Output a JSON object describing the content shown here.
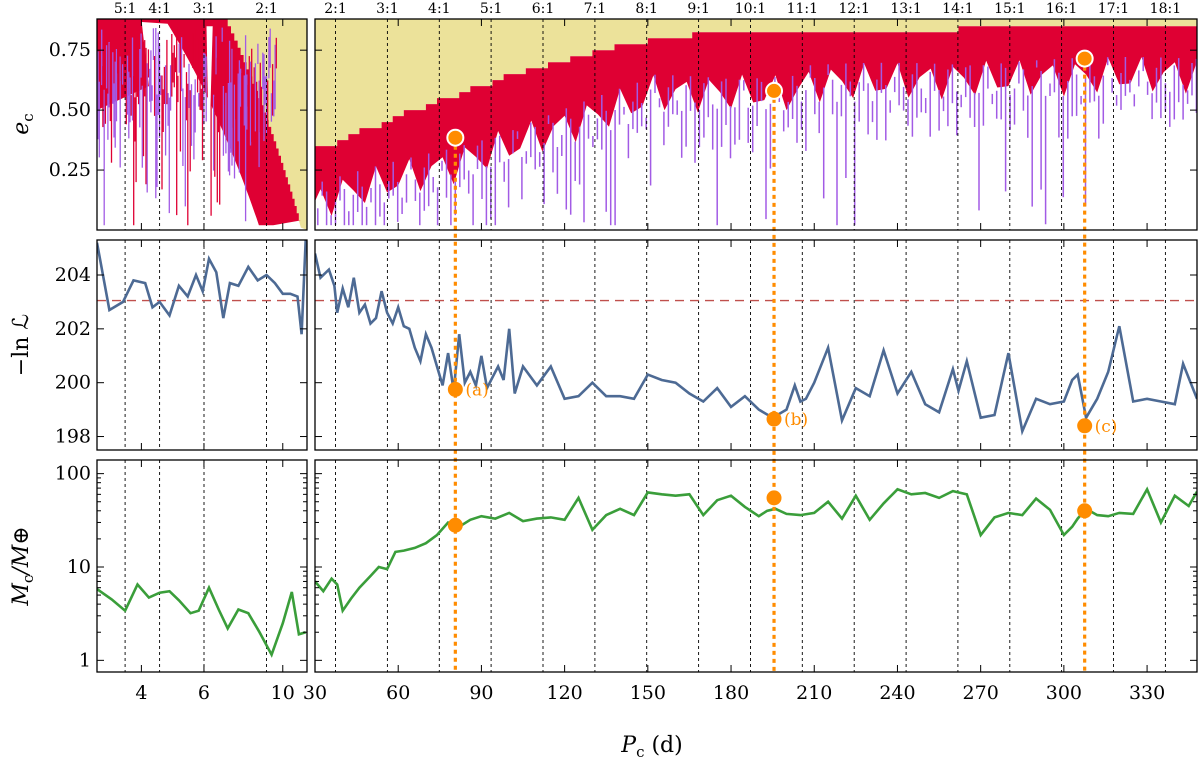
{
  "chart_data": {
    "type": "line",
    "panels": {
      "ecc": {
        "ylabel": "e",
        "ylabel_sub": "c",
        "ylim": [
          0.0,
          0.88
        ],
        "yticks": [
          0.25,
          0.5,
          0.75
        ],
        "ytick_labels": [
          "0.25",
          "0.50",
          "0.75"
        ]
      },
      "lnL": {
        "ylabel": "−ln ℒ",
        "ylim": [
          197.5,
          205.3
        ],
        "yticks": [
          198,
          200,
          202,
          204
        ],
        "ytick_labels": [
          "198",
          "200",
          "202",
          "204"
        ],
        "threshold": 203.05
      },
      "mass": {
        "ylabel": "M",
        "ylabel_sub": "c",
        "ylabel_suffix": "/M⊕",
        "yscale": "log",
        "ylim": [
          0.75,
          140
        ],
        "yticks": [
          1,
          10,
          100
        ],
        "ytick_labels": [
          "1",
          "10",
          "100"
        ]
      }
    },
    "xlabel": "P",
    "xlabel_sub": "c",
    "xlabel_suffix": " (d)",
    "left_xlim": [
      3.0,
      11.7
    ],
    "left_xticks": [
      4,
      6,
      10
    ],
    "left_xtick_labels": [
      "4",
      "6",
      "10"
    ],
    "right_xlim": [
      30,
      348
    ],
    "right_xticks": [
      30,
      60,
      90,
      120,
      150,
      180,
      210,
      240,
      270,
      300,
      330
    ],
    "right_xtick_labels": [
      "30",
      "60",
      "90",
      "120",
      "150",
      "180",
      "210",
      "240",
      "270",
      "300",
      "330"
    ],
    "left_resonances": [
      {
        "label": "5:1",
        "x": 3.6
      },
      {
        "label": "4:1",
        "x": 4.5
      },
      {
        "label": "3:1",
        "x": 6.0
      },
      {
        "label": "2:1",
        "x": 9.0
      }
    ],
    "right_resonances": [
      {
        "label": "2:1",
        "x": 37.4
      },
      {
        "label": "3:1",
        "x": 56.1
      },
      {
        "label": "4:1",
        "x": 74.8
      },
      {
        "label": "5:1",
        "x": 93.5
      },
      {
        "label": "6:1",
        "x": 112.2
      },
      {
        "label": "7:1",
        "x": 130.9
      },
      {
        "label": "8:1",
        "x": 149.6
      },
      {
        "label": "9:1",
        "x": 168.3
      },
      {
        "label": "10:1",
        "x": 187.0
      },
      {
        "label": "11:1",
        "x": 205.7
      },
      {
        "label": "12:1",
        "x": 224.4
      },
      {
        "label": "13:1",
        "x": 243.1
      },
      {
        "label": "14:1",
        "x": 261.8
      },
      {
        "label": "15:1",
        "x": 280.5
      },
      {
        "label": "16:1",
        "x": 299.2
      },
      {
        "label": "17:1",
        "x": 317.9
      },
      {
        "label": "18:1",
        "x": 336.6
      }
    ],
    "lnL_left": {
      "x": [
        3.0,
        3.25,
        3.55,
        3.8,
        4.1,
        4.3,
        4.5,
        4.8,
        5.1,
        5.4,
        5.7,
        5.95,
        6.2,
        6.5,
        6.8,
        7.1,
        7.5,
        8.0,
        8.5,
        9.0,
        9.5,
        10.0,
        10.5,
        11.0,
        11.3,
        11.6
      ],
      "y": [
        205.2,
        202.7,
        203.0,
        203.8,
        203.7,
        202.8,
        203.0,
        202.5,
        203.6,
        203.2,
        204.0,
        203.4,
        204.6,
        204.1,
        202.4,
        203.7,
        203.6,
        204.3,
        203.8,
        204.0,
        203.7,
        203.3,
        203.3,
        203.2,
        201.8,
        205.3
      ]
    },
    "lnL_right": {
      "x": [
        30,
        32,
        35,
        37,
        38,
        40,
        42,
        44,
        46,
        48,
        50,
        52,
        54,
        56,
        58,
        60,
        62,
        64,
        66,
        68,
        70,
        72,
        74,
        76,
        78,
        80,
        82,
        84,
        86,
        88,
        90,
        92,
        94,
        96,
        98,
        100,
        102,
        105,
        110,
        115,
        120,
        125,
        130,
        135,
        140,
        145,
        150,
        155,
        160,
        165,
        170,
        175,
        180,
        185,
        190,
        195,
        200,
        203,
        205,
        207,
        210,
        215,
        220,
        225,
        230,
        235,
        240,
        245,
        250,
        255,
        260,
        262,
        265,
        270,
        275,
        280,
        285,
        290,
        295,
        300,
        303,
        305,
        308,
        312,
        316,
        320,
        325,
        330,
        335,
        340,
        343,
        348
      ],
      "y": [
        204.8,
        203.9,
        204.2,
        203.6,
        202.6,
        203.5,
        202.8,
        203.9,
        202.6,
        202.9,
        202.2,
        202.4,
        203.4,
        202.6,
        202.2,
        202.8,
        202.1,
        202.0,
        201.3,
        200.8,
        201.8,
        201.3,
        200.6,
        199.9,
        201.1,
        199.7,
        201.8,
        200.0,
        200.4,
        199.9,
        201.0,
        199.8,
        200.2,
        200.6,
        200.1,
        202.0,
        199.6,
        200.6,
        199.9,
        200.6,
        199.4,
        199.5,
        200.0,
        199.5,
        199.5,
        199.4,
        200.3,
        200.1,
        200.0,
        199.6,
        199.3,
        199.8,
        199.1,
        199.5,
        199.0,
        198.7,
        199.0,
        199.9,
        199.3,
        199.4,
        200.0,
        201.3,
        198.6,
        199.8,
        199.5,
        201.2,
        199.6,
        200.4,
        199.2,
        198.9,
        200.5,
        199.7,
        200.8,
        198.7,
        198.8,
        201.1,
        198.2,
        199.4,
        199.2,
        199.3,
        200.1,
        200.3,
        198.7,
        199.4,
        200.4,
        202.1,
        199.3,
        199.4,
        199.3,
        199.2,
        200.7,
        199.4
      ]
    },
    "mass_left": {
      "x": [
        3.0,
        3.3,
        3.6,
        3.9,
        4.2,
        4.5,
        4.8,
        5.1,
        5.5,
        5.8,
        6.2,
        6.6,
        7.0,
        7.5,
        8.0,
        8.6,
        9.3,
        10.0,
        10.6,
        11.1,
        11.6
      ],
      "y": [
        5.8,
        4.5,
        3.4,
        6.5,
        4.7,
        5.3,
        5.5,
        4.4,
        3.2,
        3.4,
        6.0,
        3.5,
        2.2,
        3.5,
        3.2,
        2.0,
        1.15,
        2.5,
        5.4,
        1.9,
        2.0
      ]
    },
    "mass_right": {
      "x": [
        30,
        33,
        36,
        38,
        40,
        43,
        46,
        50,
        53,
        56,
        59,
        62,
        66,
        70,
        74,
        78,
        82,
        86,
        90,
        95,
        100,
        105,
        110,
        115,
        120,
        125,
        130,
        135,
        140,
        145,
        150,
        155,
        160,
        165,
        170,
        175,
        180,
        185,
        190,
        193,
        196,
        200,
        205,
        210,
        215,
        220,
        225,
        230,
        235,
        240,
        245,
        250,
        255,
        260,
        265,
        270,
        275,
        280,
        285,
        290,
        295,
        300,
        303,
        305,
        308,
        312,
        316,
        320,
        325,
        330,
        335,
        340,
        345,
        348
      ],
      "y": [
        7.0,
        5.5,
        7.5,
        6.5,
        3.4,
        4.6,
        6.0,
        8.0,
        10.0,
        9.5,
        14.5,
        15.0,
        16.0,
        18.0,
        22.0,
        30.0,
        27.0,
        32.0,
        35.0,
        33.0,
        38.0,
        31.0,
        33.0,
        34.0,
        32.0,
        55.0,
        25.0,
        36.0,
        42.0,
        36.0,
        63.0,
        60.0,
        58.0,
        60.0,
        36.0,
        52.0,
        58.0,
        44.0,
        35.0,
        40.0,
        42.0,
        37.0,
        36.0,
        38.0,
        50.0,
        33.0,
        58.0,
        32.0,
        48.0,
        68.0,
        60.0,
        62.0,
        55.0,
        65.0,
        60.0,
        22.0,
        34.0,
        38.0,
        36.0,
        54.0,
        41.0,
        22.0,
        27.0,
        33.0,
        42.0,
        36.0,
        35.0,
        38.0,
        37.0,
        68.0,
        30.0,
        58.0,
        45.0,
        64.0
      ]
    },
    "solutions": [
      {
        "label": "(a)",
        "P": 80.6,
        "e": 0.385,
        "lnL": 199.75,
        "M": 28.0
      },
      {
        "label": "(b)",
        "P": 195.5,
        "e": 0.58,
        "lnL": 198.65,
        "M": 55.0
      },
      {
        "label": "(c)",
        "P": 307.5,
        "e": 0.715,
        "lnL": 198.4,
        "M": 40.0
      }
    ],
    "colors": {
      "unstable_yellow": "#ece29a",
      "chaotic_red": "#df0033",
      "stable_purple": "#a25be5",
      "lnL_line": "#4d6a94",
      "threshold": "#c0504d",
      "mass_line": "#3a9e3a",
      "solution": "#ff8c00"
    }
  }
}
